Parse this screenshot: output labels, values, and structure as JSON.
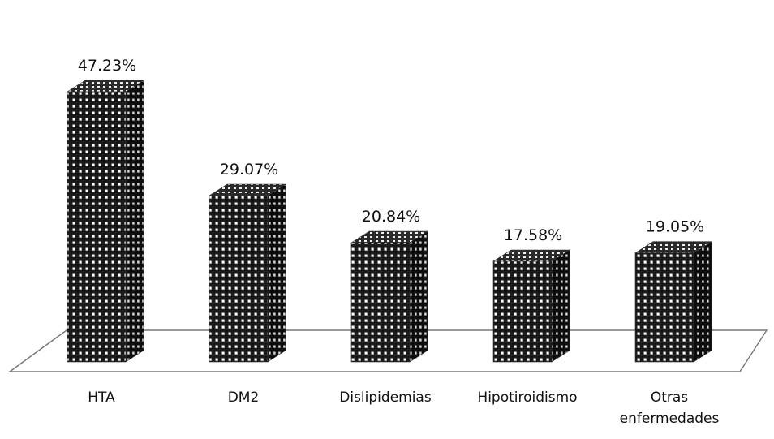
{
  "chart_data": {
    "type": "bar",
    "style": "3d-column",
    "categories": [
      "HTA",
      "DM2",
      "Dislipidemias",
      "Hipotiroidismo",
      "Otras enfermedades"
    ],
    "category_lines": [
      [
        "HTA"
      ],
      [
        "DM2"
      ],
      [
        "Dislipidemias"
      ],
      [
        "Hipotiroidismo"
      ],
      [
        "Otras",
        "enfermedades"
      ]
    ],
    "values": [
      47.23,
      29.07,
      20.84,
      17.58,
      19.05
    ],
    "value_labels": [
      "47.23%",
      "29.07%",
      "20.84%",
      "17.58%",
      "19.05%"
    ],
    "title": "",
    "xlabel": "",
    "ylabel": "",
    "ylim": [
      0,
      50
    ],
    "grid": false,
    "legend": "none",
    "colors": {
      "pattern_dark": "#1a1a1a",
      "pattern_light": "#ffffff",
      "text": "#111111",
      "floor_stroke": "#777777"
    }
  }
}
